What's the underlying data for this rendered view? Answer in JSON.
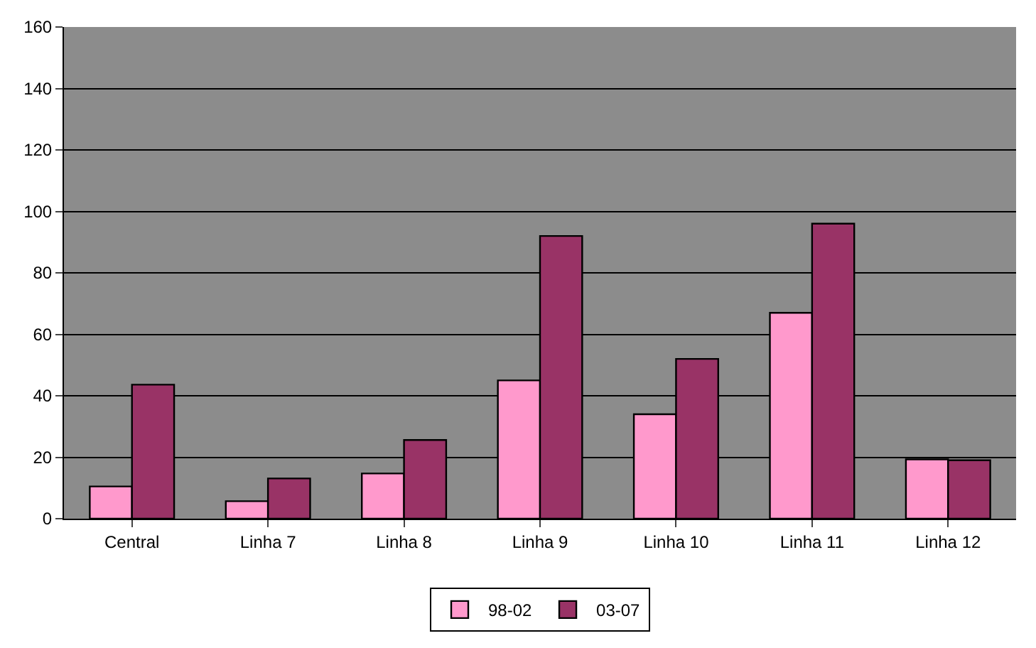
{
  "chart_data": {
    "type": "bar",
    "categories": [
      "Central",
      "Linha 7",
      "Linha 8",
      "Linha 9",
      "Linha 10",
      "Linha 11",
      "Linha 12"
    ],
    "series": [
      {
        "name": "98-02",
        "color": "#ff99cc",
        "values": [
          10.5,
          5.7,
          14.7,
          45,
          34,
          67,
          19.3
        ]
      },
      {
        "name": "03-07",
        "color": "#993366",
        "values": [
          43.6,
          13.1,
          25.6,
          92,
          52,
          96,
          19
        ]
      }
    ],
    "ylim": [
      0,
      160
    ],
    "yticks": [
      0,
      20,
      40,
      60,
      80,
      100,
      120,
      140,
      160
    ],
    "grid": "y",
    "legend": "bottom"
  }
}
